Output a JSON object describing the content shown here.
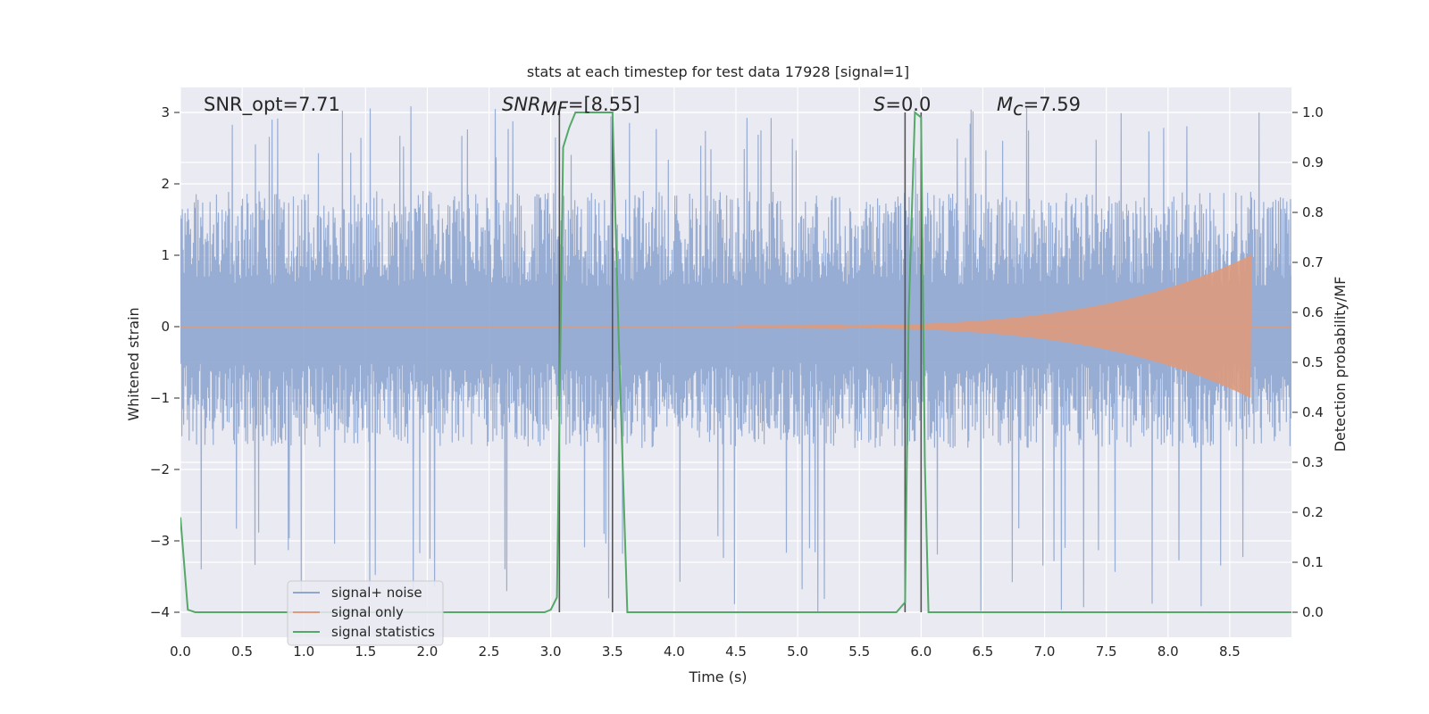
{
  "chart_data": {
    "type": "line",
    "title": "stats at each timestep for test data 17928 [signal=1]",
    "xlabel": "Time (s)",
    "ylabel_left": "Whitened strain",
    "ylabel_right": "Detection probability/MF",
    "xlim": [
      0.0,
      9.0
    ],
    "ylim_left": [
      -4.35,
      3.35
    ],
    "ylim_right": [
      -0.05,
      1.05
    ],
    "xticks": [
      "0.0",
      "0.5",
      "1.0",
      "1.5",
      "2.0",
      "2.5",
      "3.0",
      "3.5",
      "4.0",
      "4.5",
      "5.0",
      "5.5",
      "6.0",
      "6.5",
      "7.0",
      "7.5",
      "8.0",
      "8.5"
    ],
    "yticks_left": [
      "3",
      "2",
      "1",
      "0",
      "−1",
      "−2",
      "−3",
      "−4"
    ],
    "yticks_right": [
      "1.0",
      "0.9",
      "0.8",
      "0.7",
      "0.6",
      "0.5",
      "0.4",
      "0.3",
      "0.2",
      "0.1",
      "0.0"
    ],
    "grid": true,
    "legend_position": "lower-left",
    "annotations": {
      "snr_opt": "SNR_opt=7.71",
      "snr_mf_main": "SNR",
      "snr_mf_sub": "MF",
      "snr_mf_val": "=[8.55]",
      "s_main": "S",
      "s_val": "=0.0",
      "mc_main": "M",
      "mc_sub": "c",
      "mc_val": "=7.59"
    },
    "vertical_lines_x": [
      3.07,
      3.5,
      5.87,
      6.0
    ],
    "series": [
      {
        "name": "signal+ noise",
        "color": "#8fa6cf",
        "description_axis": "left",
        "noise_band": {
          "typical_range": [
            -1.7,
            1.9
          ],
          "peak_range": [
            -4.0,
            3.1
          ]
        }
      },
      {
        "name": "signal only",
        "color": "#dd9a7c",
        "description_axis": "left",
        "chirp": {
          "start_x": 4.5,
          "end_x": 8.67,
          "start_amp": 0.02,
          "end_amp": 1.0
        }
      },
      {
        "name": "signal statistics",
        "color": "#55a868",
        "description_axis": "right",
        "x": [
          0.0,
          0.06,
          0.12,
          0.5,
          1.0,
          1.5,
          2.0,
          2.5,
          2.95,
          3.0,
          3.05,
          3.1,
          3.15,
          3.2,
          3.3,
          3.4,
          3.5,
          3.55,
          3.62,
          3.7,
          4.5,
          5.0,
          5.5,
          5.8,
          5.87,
          5.9,
          5.95,
          6.0,
          6.03,
          6.06,
          6.1,
          7.0,
          8.0,
          9.0
        ],
        "y": [
          0.19,
          0.005,
          0.0,
          0.0,
          0.0,
          0.0,
          0.0,
          0.0,
          0.0,
          0.005,
          0.03,
          0.93,
          0.97,
          1.0,
          1.0,
          1.0,
          1.0,
          0.55,
          0.0,
          0.0,
          0.0,
          0.0,
          0.0,
          0.0,
          0.02,
          0.6,
          1.0,
          0.99,
          0.3,
          0.0,
          0.0,
          0.0,
          0.0,
          0.0
        ]
      }
    ]
  }
}
